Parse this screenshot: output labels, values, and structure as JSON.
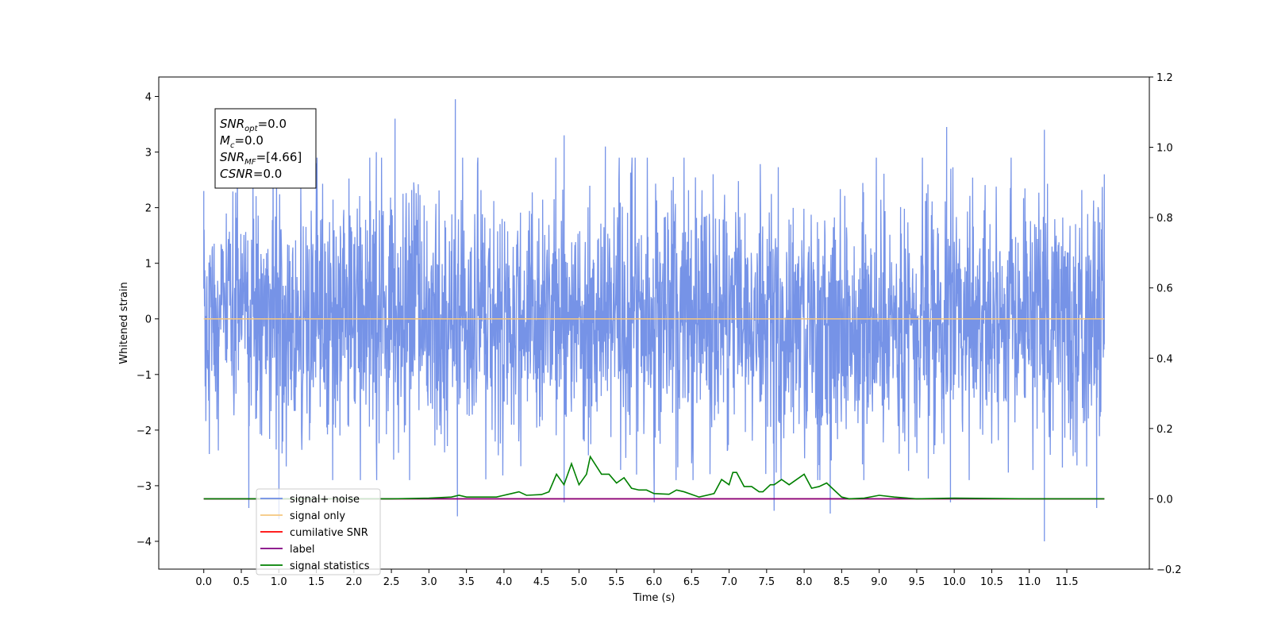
{
  "chart_data": {
    "type": "line",
    "title": "",
    "xlabel": "Time (s)",
    "ylabel": "Whitened strain",
    "xlim": [
      -0.6,
      12.6
    ],
    "ylim": [
      -4.5,
      4.35
    ],
    "y2lim": [
      -0.2,
      1.2
    ],
    "x_ticks": [
      0.0,
      0.5,
      1.0,
      1.5,
      2.0,
      2.5,
      3.0,
      3.5,
      4.0,
      4.5,
      5.0,
      5.5,
      6.0,
      6.5,
      7.0,
      7.5,
      8.0,
      8.5,
      9.0,
      9.5,
      10.0,
      10.5,
      11.0,
      11.5
    ],
    "x_tick_labels": [
      "0.0",
      "0.5",
      "1.0",
      "1.5",
      "2.0",
      "2.5",
      "3.0",
      "3.5",
      "4.0",
      "4.5",
      "5.0",
      "5.5",
      "6.0",
      "6.5",
      "7.0",
      "7.5",
      "8.0",
      "8.5",
      "9.0",
      "9.5",
      "10.0",
      "10.5",
      "11.0",
      "11.5"
    ],
    "y_ticks": [
      -4,
      -3,
      -2,
      -1,
      0,
      1,
      2,
      3,
      4
    ],
    "y_tick_labels": [
      "−4",
      "−3",
      "−2",
      "−1",
      "0",
      "1",
      "2",
      "3",
      "4"
    ],
    "y2_ticks": [
      -0.2,
      0.0,
      0.2,
      0.4,
      0.6,
      0.8,
      1.0,
      1.2
    ],
    "y2_tick_labels": [
      "−0.2",
      "0.0",
      "0.2",
      "0.4",
      "0.6",
      "0.8",
      "1.0",
      "1.2"
    ],
    "grid": false,
    "legend_position": "lower-left",
    "annotation": {
      "lines": [
        {
          "base": "SNR",
          "sub": "opt",
          "rest": "=0.0"
        },
        {
          "base": "M",
          "sub": "c",
          "rest": "=0.0"
        },
        {
          "base": "SNR",
          "sub": "MF",
          "rest": "=[4.66]"
        },
        {
          "base": "CSNR",
          "sub": "",
          "rest": "=0.0"
        }
      ]
    },
    "series": [
      {
        "name": "signal+ noise",
        "color": "#6f8de6",
        "axis": "left",
        "style": "noise",
        "x_range": [
          0.0,
          12.0
        ],
        "typical_amplitude": 1.5,
        "peaks": [
          {
            "x": 0.0,
            "y": 2.3
          },
          {
            "x": 0.6,
            "y": -3.4
          },
          {
            "x": 1.0,
            "y": -3.6
          },
          {
            "x": 1.5,
            "y": 2.8
          },
          {
            "x": 2.3,
            "y": 3.0
          },
          {
            "x": 2.55,
            "y": 3.6
          },
          {
            "x": 3.35,
            "y": 3.95
          },
          {
            "x": 3.38,
            "y": -3.55
          },
          {
            "x": 4.8,
            "y": 3.3
          },
          {
            "x": 4.8,
            "y": -3.3
          },
          {
            "x": 5.35,
            "y": 3.1
          },
          {
            "x": 6.0,
            "y": -3.3
          },
          {
            "x": 7.6,
            "y": -3.45
          },
          {
            "x": 8.35,
            "y": -3.5
          },
          {
            "x": 9.9,
            "y": 3.45
          },
          {
            "x": 9.95,
            "y": -3.3
          },
          {
            "x": 11.2,
            "y": 3.4
          },
          {
            "x": 11.2,
            "y": -4.0
          },
          {
            "x": 11.9,
            "y": -3.4
          },
          {
            "x": 12.0,
            "y": 2.6
          }
        ]
      },
      {
        "name": "signal only",
        "color": "#f5c77e",
        "axis": "left",
        "x": [
          0.0,
          12.0
        ],
        "y": [
          0.0,
          0.0
        ]
      },
      {
        "name": "cumilative SNR",
        "color": "#ff0000",
        "axis": "right",
        "x": [
          0.0,
          12.0
        ],
        "y": [
          0.0,
          0.0
        ]
      },
      {
        "name": "label",
        "color": "#800080",
        "axis": "right",
        "x": [
          0.0,
          12.0
        ],
        "y": [
          0.0,
          0.0
        ]
      },
      {
        "name": "signal statistics",
        "color": "#008000",
        "axis": "right",
        "x": [
          0.0,
          2.5,
          3.0,
          3.3,
          3.4,
          3.5,
          3.7,
          3.9,
          4.0,
          4.1,
          4.2,
          4.3,
          4.5,
          4.6,
          4.7,
          4.8,
          4.9,
          5.0,
          5.1,
          5.15,
          5.3,
          5.4,
          5.5,
          5.6,
          5.7,
          5.8,
          5.9,
          6.0,
          6.2,
          6.3,
          6.4,
          6.6,
          6.8,
          6.9,
          7.0,
          7.05,
          7.1,
          7.2,
          7.3,
          7.4,
          7.45,
          7.55,
          7.6,
          7.7,
          7.8,
          7.9,
          8.0,
          8.1,
          8.2,
          8.3,
          8.4,
          8.5,
          8.6,
          8.8,
          9.0,
          9.2,
          9.5,
          10.0,
          11.0,
          12.0
        ],
        "y": [
          0.0,
          0.0,
          0.002,
          0.005,
          0.01,
          0.005,
          0.005,
          0.005,
          0.01,
          0.015,
          0.02,
          0.01,
          0.012,
          0.02,
          0.07,
          0.04,
          0.1,
          0.04,
          0.07,
          0.12,
          0.07,
          0.07,
          0.045,
          0.06,
          0.03,
          0.025,
          0.025,
          0.015,
          0.013,
          0.025,
          0.02,
          0.005,
          0.015,
          0.055,
          0.04,
          0.075,
          0.075,
          0.035,
          0.035,
          0.02,
          0.02,
          0.04,
          0.04,
          0.055,
          0.04,
          0.055,
          0.07,
          0.03,
          0.035,
          0.045,
          0.025,
          0.005,
          0.0,
          0.002,
          0.01,
          0.005,
          0.0,
          0.002,
          0.0,
          0.0
        ]
      }
    ]
  }
}
